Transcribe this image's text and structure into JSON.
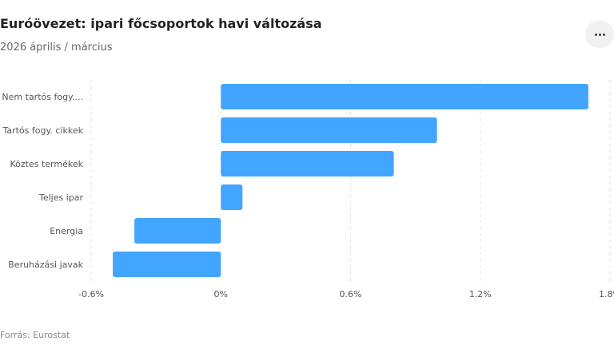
{
  "header": {
    "title": "Euróövezet: ipari főcsoportok havi változása",
    "subtitle": "2026 április / március"
  },
  "menu": {
    "icon": "more-horizontal-icon"
  },
  "footer": {
    "source": "Forrás: Eurostat"
  },
  "colors": {
    "bar": "#42a5ff",
    "grid": "#e3e3e3",
    "text": "#555555"
  },
  "chart_data": {
    "type": "bar",
    "orientation": "horizontal",
    "title": "Euróövezet: ipari főcsoportok havi változása",
    "subtitle": "2026 április / március",
    "categories": [
      "Nem tartós fogy....",
      "Tartós fogy. cikkek",
      "Köztes termékek",
      "Teljes ipar",
      "Energia",
      "Beruházási javak"
    ],
    "values": [
      1.7,
      1.0,
      0.8,
      0.1,
      -0.4,
      -0.5
    ],
    "xlim": [
      -0.6,
      1.8
    ],
    "xticks": [
      -0.6,
      0,
      0.6,
      1.2,
      1.8
    ],
    "xtick_labels": [
      "-0.6%",
      "0%",
      "0.6%",
      "1.2%",
      "1.8%"
    ],
    "grid": true,
    "legend": "none"
  }
}
